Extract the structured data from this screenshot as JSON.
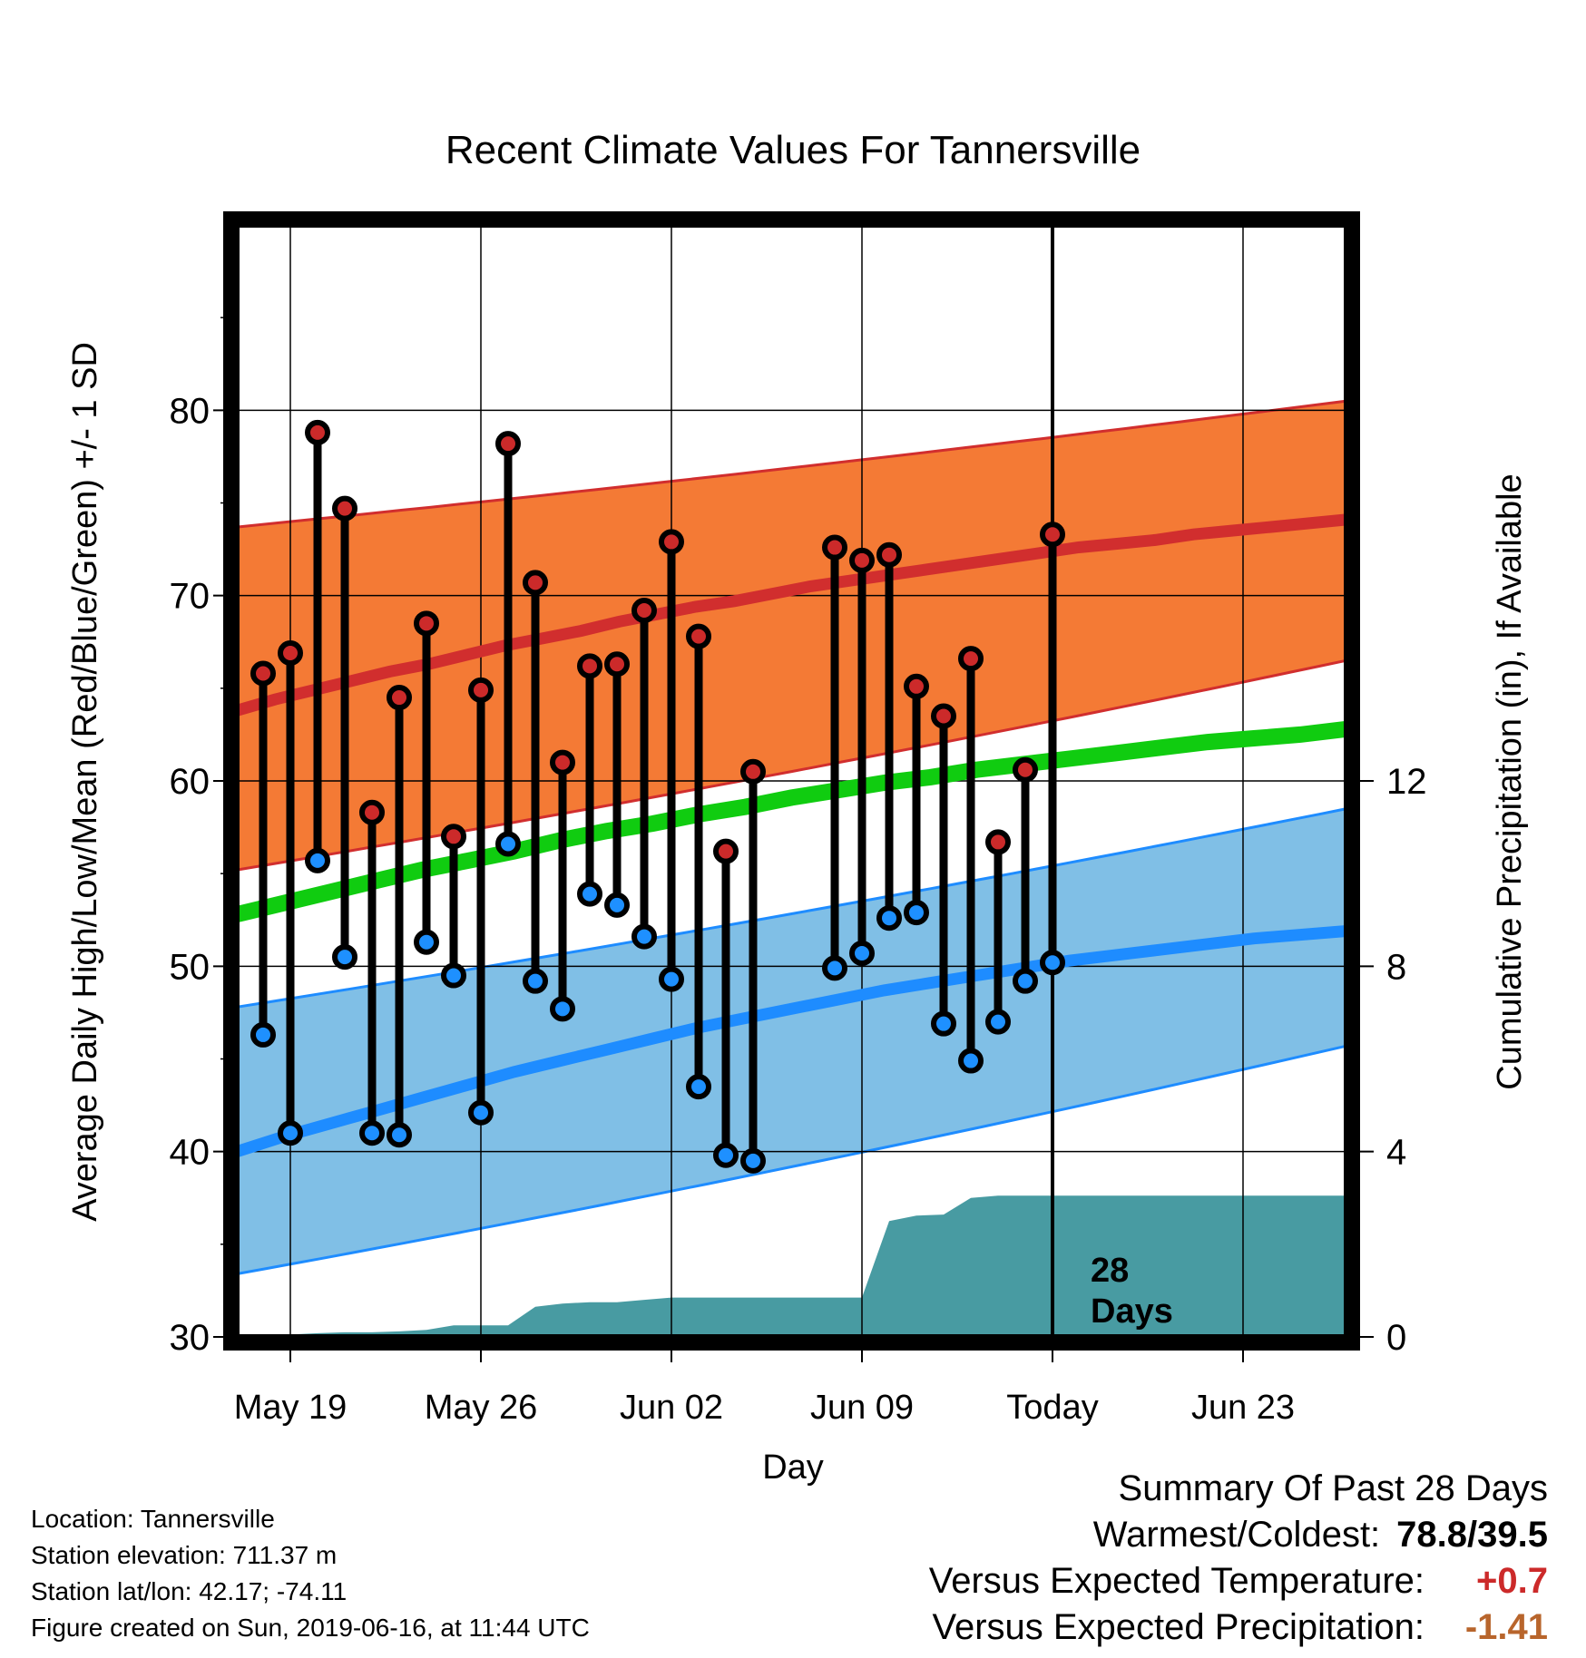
{
  "chart_data": {
    "type": "line",
    "title": "Recent Climate Values For Tannersville",
    "xlabel": "Day",
    "ylabel": "Average Daily High/Low/Mean (Red/Blue/Green) +/- 1 SD",
    "y2label": "Cumulative Precipitation (in), If Available",
    "ylim": [
      30,
      90
    ],
    "y2lim": [
      0,
      24
    ],
    "x_ticks": [
      "May 19",
      "May 26",
      "Jun 02",
      "Jun 09",
      "Today",
      "Jun 23"
    ],
    "y_ticks": [
      "30",
      "40",
      "50",
      "60",
      "70",
      "80"
    ],
    "y2_ticks": [
      "0",
      "4",
      "8",
      "12"
    ],
    "today_marker": {
      "label_line1": "28",
      "label_line2": "Days"
    },
    "days": [
      "May 18",
      "May 19",
      "May 20",
      "May 21",
      "May 22",
      "May 23",
      "May 24",
      "May 25",
      "May 26",
      "May 27",
      "May 28",
      "May 29",
      "May 30",
      "May 31",
      "Jun 01",
      "Jun 02",
      "Jun 03",
      "Jun 04",
      "Jun 05",
      "Jun 06",
      "Jun 07",
      "Jun 08",
      "Jun 09",
      "Jun 10",
      "Jun 11",
      "Jun 12",
      "Jun 13",
      "Jun 14",
      "Jun 15",
      "Jun 16"
    ],
    "series": [
      {
        "name": "Observed High",
        "color": "#cc2a2a",
        "values": [
          65.8,
          66.9,
          78.8,
          74.7,
          58.3,
          64.5,
          68.5,
          57.0,
          64.9,
          78.2,
          70.7,
          61.0,
          66.2,
          66.3,
          69.2,
          72.9,
          67.8,
          56.2,
          60.5,
          null,
          null,
          72.6,
          71.9,
          72.2,
          65.1,
          63.5,
          66.6,
          56.7,
          60.6,
          73.3
        ]
      },
      {
        "name": "Observed Low",
        "color": "#1e90ff",
        "values": [
          46.3,
          41.0,
          55.7,
          50.5,
          41.0,
          40.9,
          51.3,
          49.5,
          42.1,
          56.6,
          49.2,
          47.7,
          53.9,
          53.3,
          51.6,
          49.3,
          43.5,
          39.8,
          39.5,
          null,
          null,
          49.9,
          50.7,
          52.6,
          52.9,
          46.9,
          44.9,
          47.0,
          49.2,
          50.2
        ]
      },
      {
        "name": "Normal High",
        "color": "#d12e2e",
        "values": [
          63.8,
          64.4,
          64.9,
          65.4,
          65.9,
          66.3,
          66.8,
          67.3,
          67.7,
          68.1,
          68.6,
          69.0,
          69.4,
          69.7,
          70.1,
          70.5,
          70.8,
          71.1,
          71.4,
          71.7,
          72.0,
          72.3,
          72.6,
          72.8,
          73.0,
          73.3,
          73.5,
          73.7,
          73.9,
          74.1
        ]
      },
      {
        "name": "Normal Low",
        "color": "#1e8cff",
        "values": [
          40.0,
          40.8,
          41.5,
          42.2,
          42.9,
          43.6,
          44.3,
          44.9,
          45.5,
          46.1,
          46.7,
          47.2,
          47.7,
          48.2,
          48.7,
          49.1,
          49.5,
          49.9,
          50.3,
          50.6,
          50.9,
          51.2,
          51.5,
          51.7,
          51.9
        ]
      },
      {
        "name": "Normal Mean",
        "color": "#10cc10",
        "values": [
          52.8,
          53.4,
          54.0,
          54.6,
          55.2,
          55.7,
          56.2,
          56.8,
          57.3,
          57.7,
          58.2,
          58.6,
          59.1,
          59.5,
          59.9,
          60.2,
          60.6,
          60.9,
          61.2,
          61.5,
          61.8,
          62.1,
          62.3,
          62.5,
          62.8
        ]
      },
      {
        "name": "High +/- 1 SD",
        "color": "#f47a35",
        "upper_start": 73.7,
        "upper_end": 80.5,
        "lower_start": 55.2,
        "lower_end": 66.5
      },
      {
        "name": "Low +/- 1 SD",
        "color": "#80bfe6",
        "upper_start": 47.8,
        "upper_end": 58.5,
        "lower_start": 33.4,
        "lower_end": 45.7
      },
      {
        "name": "Cumulative Precipitation",
        "color": "#489ba2",
        "values": [
          0.0,
          0.05,
          0.08,
          0.1,
          0.1,
          0.12,
          0.15,
          0.25,
          0.25,
          0.25,
          0.65,
          0.72,
          0.75,
          0.75,
          0.8,
          0.85,
          0.85,
          0.85,
          0.85,
          0.85,
          0.85,
          0.85,
          0.85,
          2.5,
          2.62,
          2.64,
          3.0,
          3.05,
          3.05,
          3.05
        ]
      }
    ]
  },
  "station_info": {
    "location": "Location: Tannersville",
    "elevation": "Station elevation: 711.37 m",
    "latlon": "Station lat/lon: 42.17; -74.11",
    "created": "Figure created on Sun, 2019-06-16, at 11:44 UTC"
  },
  "summary": {
    "heading": "Summary Of Past 28 Days",
    "warm_cold_label": "Warmest/Coldest:",
    "warm_cold_value": "78.8/39.5",
    "temp_label": "Versus Expected Temperature:",
    "temp_value": "+0.7",
    "precip_label": "Versus Expected Precipitation:",
    "precip_value": "-1.41"
  }
}
